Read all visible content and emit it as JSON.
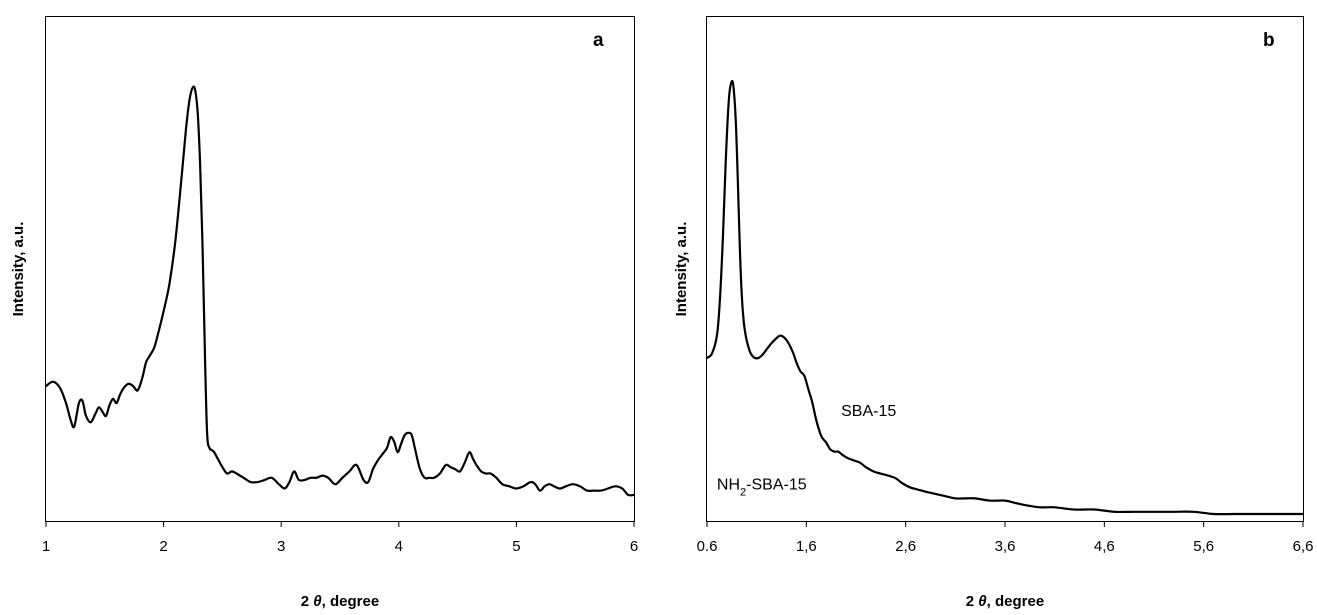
{
  "chart_data": [
    {
      "type": "line",
      "panel_label": "a",
      "xlabel_num": "2",
      "xlabel_sym": "θ",
      "xlabel_rest": ", degree",
      "ylabel": "Intensity, a.u.",
      "xlim": [
        1,
        6
      ],
      "ylim": [
        0,
        100
      ],
      "y_ticks_shown": false,
      "x_ticks": [
        {
          "value": 1,
          "label": "1"
        },
        {
          "value": 2,
          "label": "2"
        },
        {
          "value": 3,
          "label": "3"
        },
        {
          "value": 4,
          "label": "4"
        },
        {
          "value": 5,
          "label": "5"
        },
        {
          "value": 6,
          "label": "6"
        }
      ],
      "annotations": [],
      "series": [
        {
          "x": [
            1.0,
            1.06,
            1.12,
            1.17,
            1.21,
            1.24,
            1.28,
            1.31,
            1.34,
            1.38,
            1.42,
            1.45,
            1.48,
            1.51,
            1.54,
            1.57,
            1.6,
            1.63,
            1.66,
            1.7,
            1.74,
            1.78,
            1.82,
            1.85,
            1.88,
            1.92,
            1.96,
            2.0,
            2.05,
            2.1,
            2.15,
            2.19,
            2.22,
            2.25,
            2.27,
            2.29,
            2.31,
            2.33,
            2.35,
            2.37,
            2.39,
            2.41,
            2.43,
            2.46,
            2.5,
            2.54,
            2.58,
            2.62,
            2.68,
            2.74,
            2.8,
            2.86,
            2.92,
            2.98,
            3.03,
            3.07,
            3.11,
            3.15,
            3.2,
            3.25,
            3.3,
            3.35,
            3.4,
            3.46,
            3.52,
            3.58,
            3.64,
            3.7,
            3.74,
            3.78,
            3.82,
            3.86,
            3.9,
            3.93,
            3.96,
            3.99,
            4.02,
            4.05,
            4.08,
            4.11,
            4.14,
            4.18,
            4.22,
            4.26,
            4.3,
            4.35,
            4.4,
            4.44,
            4.48,
            4.52,
            4.56,
            4.6,
            4.63,
            4.66,
            4.7,
            4.74,
            4.78,
            4.83,
            4.88,
            4.94,
            5.0,
            5.06,
            5.12,
            5.16,
            5.2,
            5.24,
            5.28,
            5.32,
            5.37,
            5.42,
            5.48,
            5.54,
            5.6,
            5.66,
            5.72,
            5.78,
            5.84,
            5.9,
            5.95,
            6.0
          ],
          "y": [
            26,
            27,
            25.5,
            22,
            18,
            16.5,
            22,
            22.5,
            19,
            17.5,
            19.5,
            21,
            20,
            19,
            21.5,
            23,
            22,
            24,
            25.5,
            26.5,
            26,
            25,
            28,
            31.5,
            33,
            35,
            39,
            43.5,
            50,
            60,
            74,
            86,
            93,
            96,
            95,
            90,
            78,
            60,
            35,
            15,
            11.5,
            11,
            10.5,
            9,
            7,
            5.5,
            6,
            5.5,
            4.5,
            3.5,
            3.5,
            4,
            4.5,
            3,
            2,
            3.5,
            6,
            4,
            4,
            4.5,
            4.5,
            5,
            4.5,
            3,
            4.5,
            6,
            7.5,
            4,
            3.5,
            6.5,
            8.5,
            10,
            11.5,
            14,
            13,
            10.5,
            12.5,
            14.5,
            15,
            14.5,
            11,
            6.5,
            4.5,
            4.5,
            4.5,
            5.5,
            7.5,
            7,
            6.5,
            6,
            8,
            10.5,
            9,
            7.5,
            6,
            5.5,
            5.5,
            4.5,
            3,
            2.5,
            2,
            2.5,
            3.5,
            3,
            1.5,
            2.5,
            3,
            2.5,
            2,
            2.5,
            3,
            2.5,
            1.5,
            1.5,
            1.5,
            2,
            2.5,
            2,
            0.5,
            0.5
          ]
        }
      ]
    },
    {
      "type": "line",
      "panel_label": "b",
      "xlabel_num": "2",
      "xlabel_sym": "θ",
      "xlabel_rest": ", degree",
      "ylabel": "Intensity, a.u.",
      "xlim": [
        0.6,
        6.6
      ],
      "ylim": [
        0,
        100
      ],
      "y_ticks_shown": false,
      "x_ticks": [
        {
          "value": 0.6,
          "label": "0.6"
        },
        {
          "value": 1.6,
          "label": "1,6"
        },
        {
          "value": 2.6,
          "label": "2,6"
        },
        {
          "value": 3.6,
          "label": "3,6"
        },
        {
          "value": 4.6,
          "label": "4,6"
        },
        {
          "value": 5.6,
          "label": "5,6"
        },
        {
          "value": 6.6,
          "label": "6,6"
        }
      ],
      "annotations": [
        {
          "label_html_base": "SBA-15",
          "x": 1.95,
          "y": 22
        },
        {
          "label_prefix": "NH",
          "label_sub": "2",
          "label_suffix": "-SBA-15",
          "x": 0.7,
          "y": 5.5
        }
      ],
      "series": [
        {
          "x": [
            0.6,
            0.65,
            0.7,
            0.73,
            0.76,
            0.79,
            0.82,
            0.85,
            0.87,
            0.89,
            0.91,
            0.93,
            0.95,
            0.97,
            0.99,
            1.01,
            1.04,
            1.08,
            1.12,
            1.17,
            1.22,
            1.28,
            1.34,
            1.4,
            1.46,
            1.5,
            1.54,
            1.58,
            1.62,
            1.66,
            1.7,
            1.75,
            1.8,
            1.84,
            1.88,
            1.92,
            1.95,
            1.98,
            2.02,
            2.08,
            2.14,
            2.2,
            2.28,
            2.36,
            2.44,
            2.5,
            2.56,
            2.64,
            2.72,
            2.8,
            2.9,
            3.0,
            3.1,
            3.2,
            3.3,
            3.45,
            3.6,
            3.7,
            3.8,
            3.95,
            4.1,
            4.3,
            4.5,
            4.7,
            4.9,
            5.1,
            5.3,
            5.5,
            5.7,
            5.9,
            6.1,
            6.3,
            6.5,
            6.6
          ],
          "y": [
            35,
            36,
            40,
            48,
            62,
            80,
            93,
            97,
            95,
            88,
            75,
            60,
            49,
            43,
            40,
            38,
            36,
            35,
            35,
            36,
            37.5,
            39,
            40,
            39,
            36.5,
            34,
            32,
            31,
            28,
            25,
            21,
            17.5,
            16,
            14.5,
            14,
            14,
            13.5,
            13,
            12.5,
            12,
            11.5,
            10.5,
            9.5,
            9,
            8.5,
            8,
            7,
            6,
            5.5,
            5,
            4.5,
            4,
            3.5,
            3.5,
            3.5,
            3,
            3,
            2.5,
            2,
            1.5,
            1.5,
            1,
            1,
            0.5,
            0.5,
            0.5,
            0.5,
            0.5,
            0,
            0,
            0,
            0,
            0,
            0
          ]
        }
      ]
    }
  ]
}
